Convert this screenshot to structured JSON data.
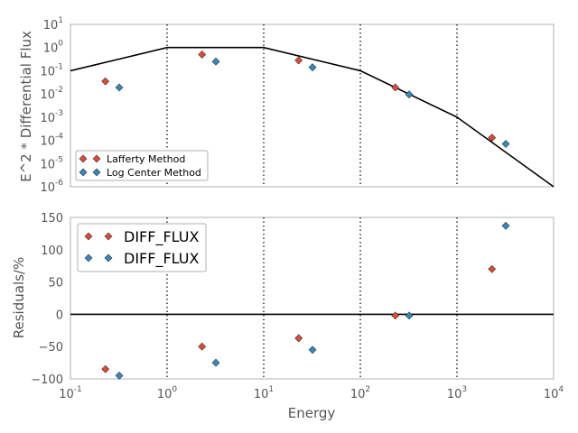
{
  "chart_data": [
    {
      "type": "scatter",
      "panel": "top",
      "xscale": "log",
      "yscale": "log",
      "xlim": [
        0.1,
        10000
      ],
      "ylim": [
        1e-06,
        10
      ],
      "xlabel": "",
      "ylabel": "E^2 * Differential Flux",
      "xticks": [
        {
          "base": "10",
          "exp": "-1"
        },
        {
          "base": "10",
          "exp": "0"
        },
        {
          "base": "10",
          "exp": "1"
        },
        {
          "base": "10",
          "exp": "2"
        },
        {
          "base": "10",
          "exp": "3"
        },
        {
          "base": "10",
          "exp": "4"
        }
      ],
      "yticks": [
        {
          "base": "10",
          "exp": "1"
        },
        {
          "base": "10",
          "exp": "0"
        },
        {
          "base": "10",
          "exp": "-1"
        },
        {
          "base": "10",
          "exp": "-2"
        },
        {
          "base": "10",
          "exp": "-3"
        },
        {
          "base": "10",
          "exp": "-4"
        },
        {
          "base": "10",
          "exp": "-5"
        },
        {
          "base": "10",
          "exp": "-6"
        }
      ],
      "vlines": [
        1,
        10,
        100,
        1000
      ],
      "model_line": {
        "x": [
          0.1,
          1,
          10,
          100,
          1000,
          10000
        ],
        "y": [
          0.1,
          1,
          1,
          0.1,
          0.001,
          1e-06
        ]
      },
      "series": [
        {
          "name": "Lafferty Method",
          "color": "#e24a33",
          "x": [
            0.23,
            2.3,
            23,
            230,
            2300
          ],
          "y": [
            0.035,
            0.5,
            0.28,
            0.019,
            0.00013
          ]
        },
        {
          "name": "Log Center Method",
          "color": "#348abd",
          "x": [
            0.32,
            3.2,
            32,
            320,
            3200
          ],
          "y": [
            0.019,
            0.25,
            0.14,
            0.0095,
            7e-05
          ]
        }
      ],
      "legend": "lower-left"
    },
    {
      "type": "scatter",
      "panel": "bottom",
      "xscale": "log",
      "xlim": [
        0.1,
        10000
      ],
      "ylim": [
        -100,
        150
      ],
      "xlabel": "Energy",
      "ylabel": "Residuals/%",
      "xticks": [
        {
          "base": "10",
          "exp": "-1"
        },
        {
          "base": "10",
          "exp": "0"
        },
        {
          "base": "10",
          "exp": "1"
        },
        {
          "base": "10",
          "exp": "2"
        },
        {
          "base": "10",
          "exp": "3"
        },
        {
          "base": "10",
          "exp": "4"
        }
      ],
      "yticks": [
        "150",
        "100",
        "50",
        "0",
        "−50",
        "−100"
      ],
      "ytick_values": [
        150,
        100,
        50,
        0,
        -50,
        -100
      ],
      "vlines": [
        1,
        10,
        100,
        1000
      ],
      "hline": 0,
      "series": [
        {
          "name": "DIFF_FLUX",
          "color": "#e24a33",
          "x": [
            0.23,
            2.3,
            23,
            230,
            2300
          ],
          "y": [
            -85,
            -50,
            -37,
            -2,
            70
          ]
        },
        {
          "name": "DIFF_FLUX",
          "color": "#348abd",
          "x": [
            0.32,
            3.2,
            32,
            320,
            3200
          ],
          "y": [
            -95,
            -75,
            -55,
            -2,
            137
          ]
        }
      ],
      "legend": "upper-left"
    }
  ]
}
